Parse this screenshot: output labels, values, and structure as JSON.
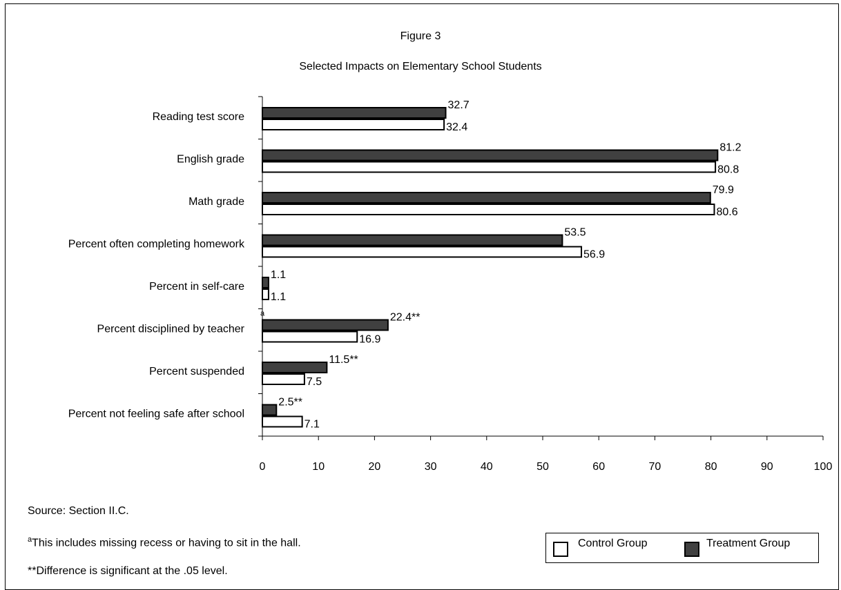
{
  "title": "Figure 3",
  "subtitle": "Selected Impacts on Elementary School Students",
  "notes": {
    "source": "Source:  Section II.C.",
    "footnote_a_marker": "a",
    "footnote_a": "This includes missing recess or having to sit in the hall.",
    "footnote_sig": "**Difference is significant at the .05 level."
  },
  "legend": {
    "control_label": "Control Group",
    "treatment_label": "Treatment Group"
  },
  "colors": {
    "control": "#ffffff",
    "treatment": "#404040",
    "outline": "#000000"
  },
  "chart_data": {
    "type": "bar",
    "orientation": "horizontal",
    "categories": [
      "Reading test score",
      "English grade",
      "Math grade",
      "Percent often completing homework",
      "Percent in self-care",
      "Percent disciplined by teacher",
      "Percent suspended",
      "Percent not feeling safe after school"
    ],
    "series": [
      {
        "name": "Treatment Group",
        "values": [
          32.7,
          81.2,
          79.9,
          53.5,
          1.1,
          22.4,
          11.5,
          2.5
        ],
        "labels": [
          "32.7",
          "81.2",
          "79.9",
          "53.5",
          "1.1",
          "22.4**",
          "11.5**",
          "2.5**"
        ]
      },
      {
        "name": "Control Group",
        "values": [
          32.4,
          80.8,
          80.6,
          56.9,
          1.1,
          16.9,
          7.5,
          7.1
        ],
        "labels": [
          "32.4",
          "80.8",
          "80.6",
          "56.9",
          "1.1",
          "16.9",
          "7.5",
          "7.1"
        ]
      }
    ],
    "category_marker": {
      "category_index": 5,
      "text": "a"
    },
    "xlim": [
      0,
      100
    ],
    "xticks": [
      0,
      10,
      20,
      30,
      40,
      50,
      60,
      70,
      80,
      90,
      100
    ],
    "xlabel": "",
    "ylabel": "",
    "grid": false,
    "legend_position": "bottom-right"
  }
}
